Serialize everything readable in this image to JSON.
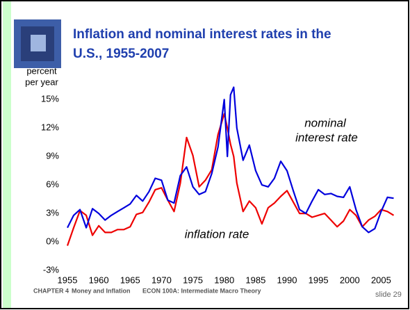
{
  "chart_data": {
    "type": "line",
    "title": [
      "Inflation and nominal interest rates in the",
      "U.S., 1955-2007"
    ],
    "y_label": [
      "percent",
      "per year"
    ],
    "x": [
      1955,
      1956,
      1957,
      1958,
      1959,
      1960,
      1961,
      1962,
      1963,
      1964,
      1965,
      1966,
      1967,
      1968,
      1969,
      1970,
      1971,
      1972,
      1973,
      1974,
      1975,
      1976,
      1977,
      1978,
      1979,
      1980,
      1980.5,
      1981,
      1981.5,
      1982,
      1983,
      1984,
      1985,
      1986,
      1987,
      1988,
      1989,
      1990,
      1991,
      1992,
      1993,
      1994,
      1995,
      1996,
      1997,
      1998,
      1999,
      2000,
      2001,
      2002,
      2003,
      2004,
      2005,
      2006,
      2007
    ],
    "series": [
      {
        "name": "nominal interest rate",
        "color": "#0000dd",
        "values": [
          1.5,
          2.8,
          3.4,
          1.5,
          3.5,
          3.0,
          2.3,
          2.8,
          3.2,
          3.6,
          4.0,
          4.9,
          4.3,
          5.3,
          6.7,
          6.5,
          4.4,
          4.1,
          7.0,
          7.9,
          5.8,
          5.0,
          5.3,
          7.2,
          10.0,
          15.0,
          9.0,
          15.5,
          16.3,
          12.0,
          8.6,
          10.2,
          7.5,
          6.0,
          5.8,
          6.7,
          8.5,
          7.5,
          5.4,
          3.4,
          3.0,
          4.3,
          5.5,
          5.0,
          5.1,
          4.8,
          4.7,
          5.8,
          3.4,
          1.6,
          1.0,
          1.4,
          3.2,
          4.7,
          4.6
        ]
      },
      {
        "name": "inflation rate",
        "color": "#ee0000",
        "values": [
          -0.4,
          1.5,
          3.3,
          2.8,
          0.7,
          1.7,
          1.0,
          1.0,
          1.3,
          1.3,
          1.6,
          2.9,
          3.1,
          4.2,
          5.5,
          5.7,
          4.4,
          3.2,
          6.2,
          11.0,
          9.1,
          5.8,
          6.5,
          7.6,
          11.3,
          13.5,
          12.0,
          10.3,
          9.0,
          6.2,
          3.2,
          4.3,
          3.6,
          1.9,
          3.6,
          4.1,
          4.8,
          5.4,
          4.2,
          3.0,
          3.0,
          2.6,
          2.8,
          3.0,
          2.3,
          1.6,
          2.2,
          3.4,
          2.8,
          1.6,
          2.3,
          2.7,
          3.4,
          3.2,
          2.8
        ]
      }
    ],
    "annotations": [
      "nominal",
      "interest rate",
      "inflation rate"
    ],
    "xlim": [
      1955,
      2007.5
    ],
    "xticks": [
      1955,
      1960,
      1965,
      1970,
      1975,
      1980,
      1985,
      1990,
      1995,
      2000,
      2005
    ],
    "ylim": [
      -3,
      16.7
    ],
    "yticks": [
      {
        "value": -3,
        "label": "-3%"
      },
      {
        "value": 0,
        "label": "0%"
      },
      {
        "value": 3,
        "label": "3%"
      },
      {
        "value": 6,
        "label": "6%"
      },
      {
        "value": 9,
        "label": "9%"
      },
      {
        "value": 12,
        "label": "12%"
      },
      {
        "value": 15,
        "label": "15%"
      }
    ]
  },
  "footer": {
    "chapter": "CHAPTER 4",
    "topic": "Money and Inflation",
    "course": "ECON 100A: Intermediate Macro Theory",
    "slide": "slide 29"
  }
}
